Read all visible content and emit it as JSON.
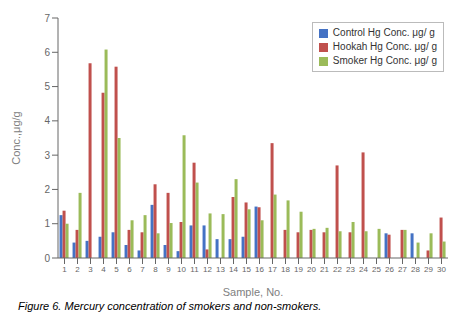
{
  "chart_data": {
    "type": "bar",
    "xlabel": "Sample, No.",
    "ylabel": "Conc.,μg/g",
    "annotations": [
      "Figure 6. Mercury concentration of smokers and non-smokers."
    ],
    "categories": [
      1,
      2,
      3,
      4,
      5,
      6,
      7,
      8,
      9,
      10,
      11,
      12,
      13,
      14,
      15,
      16,
      17,
      18,
      19,
      20,
      21,
      22,
      23,
      24,
      25,
      26,
      27,
      28,
      29,
      30
    ],
    "series": [
      {
        "name": "Control Hg Conc. μg/ g",
        "color": "#4472c4",
        "values": [
          1.25,
          0.45,
          0.5,
          0.62,
          0.75,
          0.38,
          0.22,
          1.55,
          0.38,
          0.2,
          0.95,
          0.95,
          0.55,
          0.55,
          0.62,
          1.5,
          0.0,
          0.0,
          0.0,
          0.0,
          0.0,
          0.0,
          0.0,
          0.0,
          0.0,
          0.72,
          0.0,
          0.72,
          0.0,
          0.0
        ]
      },
      {
        "name": "Hookah Hg Conc. μg/ g",
        "color": "#c0504d",
        "values": [
          1.38,
          0.82,
          5.68,
          4.82,
          5.58,
          0.82,
          0.75,
          2.15,
          1.9,
          1.05,
          2.78,
          0.25,
          0.0,
          1.78,
          1.62,
          1.48,
          3.35,
          0.82,
          0.75,
          0.82,
          0.75,
          2.7,
          0.75,
          3.08,
          0.0,
          0.68,
          0.82,
          0.0,
          0.22,
          1.18
        ]
      },
      {
        "name": "Smoker Hg Conc. μg/ g",
        "color": "#9bbb59",
        "values": [
          1.0,
          1.9,
          0.0,
          6.08,
          3.5,
          1.1,
          1.25,
          0.72,
          1.02,
          3.58,
          2.2,
          1.3,
          1.28,
          2.3,
          1.42,
          1.1,
          1.85,
          1.68,
          1.35,
          0.85,
          0.88,
          0.78,
          1.05,
          0.78,
          0.85,
          0.0,
          0.82,
          0.45,
          0.72,
          0.48
        ]
      }
    ],
    "ylim": [
      0,
      7
    ],
    "yticks": [
      0,
      1,
      2,
      3,
      4,
      5,
      6,
      7
    ],
    "grid": false,
    "legend": "upper right"
  }
}
